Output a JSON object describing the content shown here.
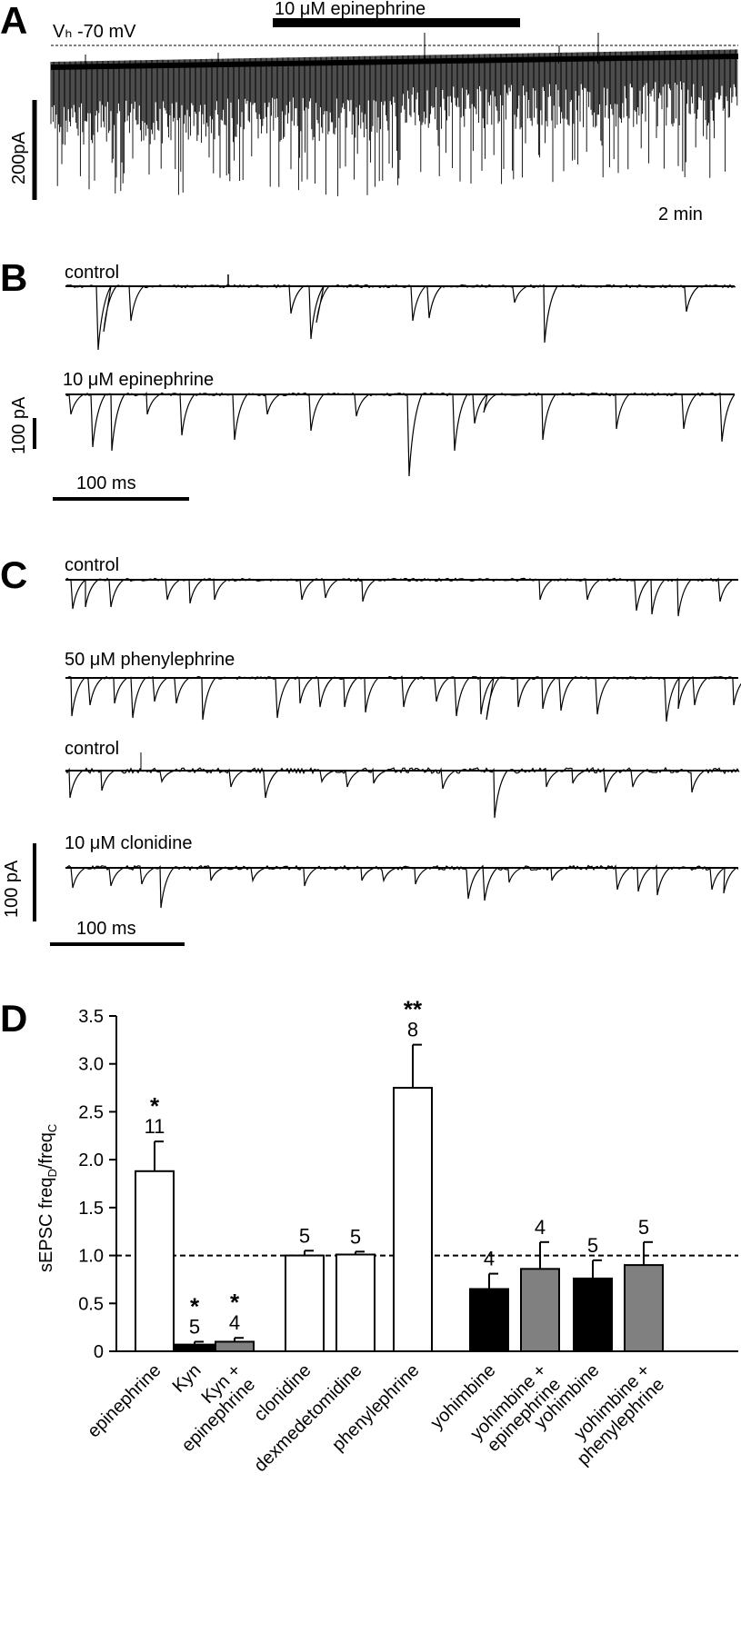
{
  "panels": {
    "a": "A",
    "b": "B",
    "c": "C",
    "d": "D"
  },
  "panel_a": {
    "drug_label": "10 μM epinephrine",
    "holding_label": "Vₕ -70 mV",
    "scale_y": "200pA",
    "scale_x": "2 min"
  },
  "panel_b": {
    "trace1": "control",
    "trace2": "10 μM epinephrine",
    "scale_y": "100 pA",
    "scale_x": "100 ms"
  },
  "panel_c": {
    "trace1": "control",
    "trace2": "50 μM phenylephrine",
    "trace3": "control",
    "trace4": "10 μM clonidine",
    "scale_y": "100 pA",
    "scale_x": "100 ms"
  },
  "chart_data": {
    "type": "bar",
    "ylabel": "sEPSC freq_D/freq_C",
    "ylim": [
      0,
      3.5
    ],
    "yticks": [
      "0",
      "0.5",
      "1.0",
      "1.5",
      "2.0",
      "2.5",
      "3.0",
      "3.5"
    ],
    "reference_line": 1.0,
    "bars": [
      {
        "label": "epinephrine",
        "value": 1.88,
        "error": 0.31,
        "n": "11",
        "sig": "*",
        "fill": "#ffffff"
      },
      {
        "label": "Kyn",
        "value": 0.07,
        "error": 0.03,
        "n": "5",
        "sig": "*",
        "fill": "#000000"
      },
      {
        "label": "Kyn + epinephrine",
        "value": 0.1,
        "error": 0.04,
        "n": "4",
        "sig": "*",
        "fill": "#808080"
      },
      {
        "label": "clonidine",
        "value": 1.0,
        "error": 0.05,
        "n": "5",
        "sig": "",
        "fill": "#ffffff"
      },
      {
        "label": "dexmedetomidine",
        "value": 1.01,
        "error": 0.03,
        "n": "5",
        "sig": "",
        "fill": "#ffffff"
      },
      {
        "label": "phenylephrine",
        "value": 2.75,
        "error": 0.45,
        "n": "8",
        "sig": "**",
        "fill": "#ffffff"
      },
      {
        "label": "yohimbine",
        "value": 0.65,
        "error": 0.16,
        "n": "4",
        "sig": "",
        "fill": "#000000"
      },
      {
        "label": "yohimbine + epinephrine",
        "value": 0.86,
        "error": 0.28,
        "n": "4",
        "sig": "",
        "fill": "#808080"
      },
      {
        "label": "yohimbine",
        "value": 0.76,
        "error": 0.19,
        "n": "5",
        "sig": "",
        "fill": "#000000"
      },
      {
        "label": "yohimbine + phenylephrine",
        "value": 0.9,
        "error": 0.24,
        "n": "5",
        "sig": "",
        "fill": "#808080"
      }
    ]
  }
}
